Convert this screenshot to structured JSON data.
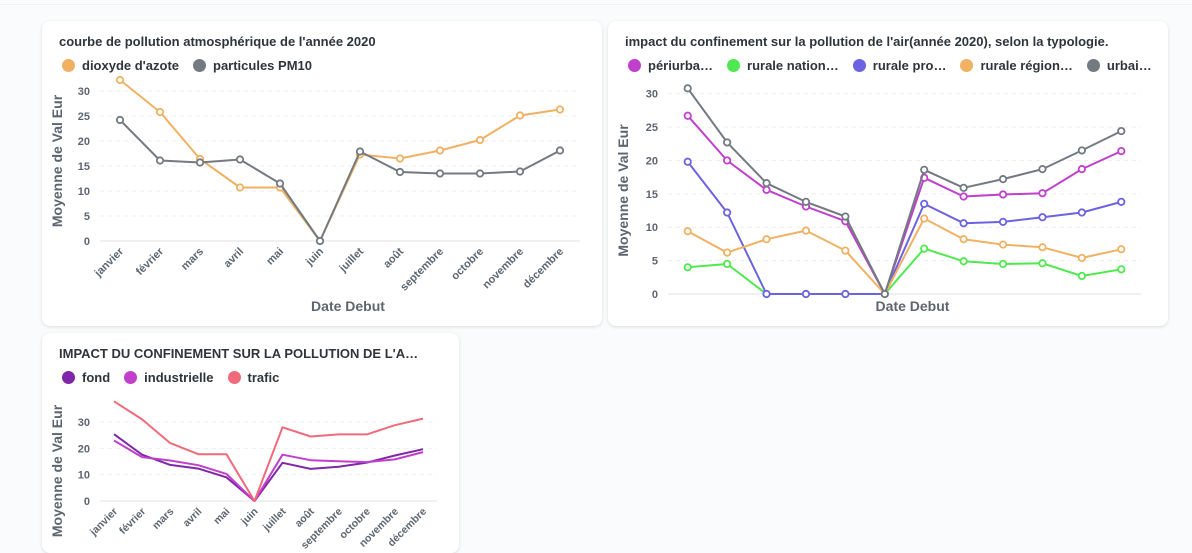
{
  "charts": [
    {
      "title": "courbe de pollution atmosphérique de l'année 2020",
      "legend": [
        {
          "label": "dioxyde d'azote",
          "color": "#f0b163"
        },
        {
          "label": "particules PM10",
          "color": "#737a82"
        }
      ]
    },
    {
      "title": "impact du confinement sur la pollution de l'air(année 2020), selon la typologie.",
      "legend": [
        {
          "label": "périurba…",
          "color": "#c03fcc"
        },
        {
          "label": "rurale nation…",
          "color": "#50e84f"
        },
        {
          "label": "rurale pro…",
          "color": "#6c63e0"
        },
        {
          "label": "rurale région…",
          "color": "#f0b163"
        },
        {
          "label": "urbai…",
          "color": "#737a82"
        }
      ]
    },
    {
      "title": "IMPACT DU CONFINEMENT SUR LA POLLUTION DE L'A…",
      "legend": [
        {
          "label": "fond",
          "color": "#7f27a8"
        },
        {
          "label": "industrielle",
          "color": "#c03fcc"
        },
        {
          "label": "trafic",
          "color": "#ef6b7b"
        }
      ]
    }
  ],
  "chart_data": [
    {
      "type": "line",
      "title": "courbe de pollution atmosphérique de l'année 2020",
      "xlabel": "Date Debut",
      "ylabel": "Moyenne de Val Eur",
      "categories": [
        "janvier",
        "février",
        "mars",
        "avril",
        "mai",
        "juin",
        "juillet",
        "août",
        "septembre",
        "octobre",
        "novembre",
        "décembre"
      ],
      "ylim": [
        0,
        32
      ],
      "yticks": [
        0,
        5,
        10,
        15,
        20,
        25,
        30
      ],
      "grid": true,
      "markers": true,
      "legend": "top-left",
      "series": [
        {
          "name": "dioxyde d'azote",
          "color": "#f0b163",
          "values": [
            32.2,
            25.8,
            16.4,
            10.7,
            10.7,
            0,
            17.3,
            16.5,
            18.1,
            20.2,
            25.1,
            26.3
          ]
        },
        {
          "name": "particules PM10",
          "color": "#737a82",
          "values": [
            24.2,
            16.1,
            15.7,
            16.3,
            11.5,
            0,
            17.9,
            13.8,
            13.5,
            13.5,
            13.9,
            18.1
          ]
        }
      ]
    },
    {
      "type": "line",
      "title": "impact du confinement sur la pollution de l'air(année 2020), selon la typologie.",
      "xlabel": "Date Debut",
      "ylabel": "Moyenne de Val Eur",
      "categories": [
        "janvier",
        "février",
        "mars",
        "avril",
        "mai",
        "juin",
        "juillet",
        "août",
        "septembre",
        "octobre",
        "novembre",
        "décembre"
      ],
      "ylim": [
        0,
        31
      ],
      "yticks": [
        0,
        5,
        10,
        15,
        20,
        25,
        30
      ],
      "grid": true,
      "markers": true,
      "legend": "top-left",
      "series": [
        {
          "name": "périurba…",
          "color": "#c03fcc",
          "values": [
            26.7,
            20.0,
            15.6,
            13.1,
            10.9,
            0,
            17.4,
            14.6,
            14.9,
            15.1,
            18.7,
            21.4
          ]
        },
        {
          "name": "rurale nation…",
          "color": "#50e84f",
          "values": [
            4.0,
            4.5,
            0,
            0,
            0,
            0,
            6.8,
            4.9,
            4.5,
            4.6,
            2.7,
            3.7
          ]
        },
        {
          "name": "rurale pro…",
          "color": "#6c63e0",
          "values": [
            19.8,
            12.2,
            0,
            0,
            0,
            0,
            13.5,
            10.6,
            10.8,
            11.5,
            12.2,
            13.8
          ]
        },
        {
          "name": "rurale région…",
          "color": "#f0b163",
          "values": [
            9.4,
            6.2,
            8.2,
            9.5,
            6.5,
            0,
            11.3,
            8.2,
            7.4,
            7.0,
            5.4,
            6.7
          ]
        },
        {
          "name": "urbai…",
          "color": "#737a82",
          "values": [
            30.8,
            22.7,
            16.6,
            13.8,
            11.6,
            0,
            18.6,
            15.9,
            17.2,
            18.7,
            21.5,
            24.4
          ]
        }
      ]
    },
    {
      "type": "line",
      "title": "IMPACT DU CONFINEMENT SUR LA POLLUTION DE L'A…",
      "xlabel": "",
      "ylabel": "Moyenne de Val Eur",
      "categories": [
        "janvier",
        "février",
        "mars",
        "avril",
        "mai",
        "juin",
        "juillet",
        "août",
        "septembre",
        "octobre",
        "novembre",
        "décembre"
      ],
      "ylim": [
        0,
        38
      ],
      "yticks": [
        0,
        10,
        20,
        30
      ],
      "grid": true,
      "markers": false,
      "legend": "top-left",
      "series": [
        {
          "name": "fond",
          "color": "#7f27a8",
          "values": [
            25.4,
            17.6,
            13.7,
            12.3,
            9.0,
            0,
            14.5,
            12.2,
            13.0,
            14.6,
            17.3,
            19.7
          ]
        },
        {
          "name": "industrielle",
          "color": "#c03fcc",
          "values": [
            23.0,
            16.7,
            15.4,
            13.6,
            10.3,
            0,
            17.6,
            15.5,
            15.1,
            14.8,
            15.8,
            18.6
          ]
        },
        {
          "name": "trafic",
          "color": "#ef6b7b",
          "values": [
            37.9,
            31.0,
            22.0,
            17.8,
            17.8,
            0,
            28.0,
            24.5,
            25.3,
            25.3,
            28.8,
            31.3
          ]
        }
      ]
    }
  ]
}
